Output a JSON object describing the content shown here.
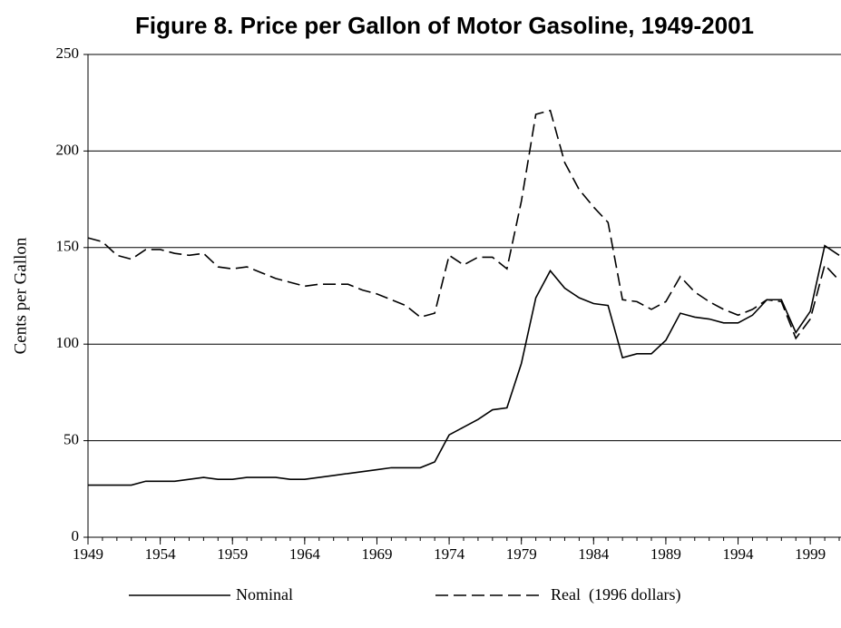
{
  "chart_data": {
    "type": "line",
    "title": "Figure 8.  Price per Gallon of Motor Gasoline, 1949-2001",
    "y_label": "Cents per Gallon",
    "x": [
      1949,
      1950,
      1951,
      1952,
      1953,
      1954,
      1955,
      1956,
      1957,
      1958,
      1959,
      1960,
      1961,
      1962,
      1963,
      1964,
      1965,
      1966,
      1967,
      1968,
      1969,
      1970,
      1971,
      1972,
      1973,
      1974,
      1975,
      1976,
      1977,
      1978,
      1979,
      1980,
      1981,
      1982,
      1983,
      1984,
      1985,
      1986,
      1987,
      1988,
      1989,
      1990,
      1991,
      1992,
      1993,
      1994,
      1995,
      1996,
      1997,
      1998,
      1999,
      2000,
      2001
    ],
    "series": [
      {
        "name": "Nominal",
        "color": "#000000",
        "dash": "solid",
        "values": [
          27,
          27,
          27,
          27,
          29,
          29,
          29,
          30,
          31,
          30,
          30,
          31,
          31,
          31,
          30,
          30,
          31,
          32,
          33,
          34,
          35,
          36,
          36,
          36,
          39,
          53,
          57,
          61,
          66,
          67,
          90,
          124,
          138,
          129,
          124,
          121,
          120,
          93,
          95,
          95,
          102,
          116,
          114,
          113,
          111,
          111,
          115,
          123,
          123,
          106,
          117,
          151,
          146
        ]
      },
      {
        "name": "Real  (1996 dollars)",
        "color": "#000000",
        "dash": "dashed",
        "values": [
          155,
          153,
          146,
          144,
          149,
          149,
          147,
          146,
          147,
          140,
          139,
          140,
          137,
          134,
          132,
          130,
          131,
          131,
          131,
          128,
          126,
          123,
          120,
          114,
          116,
          146,
          141,
          145,
          145,
          139,
          174,
          219,
          221,
          194,
          180,
          171,
          163,
          123,
          122,
          118,
          122,
          135,
          127,
          122,
          118,
          115,
          118,
          123,
          122,
          103,
          113,
          141,
          133
        ]
      }
    ],
    "xlim": [
      1949,
      2001
    ],
    "xticks": [
      1949,
      1954,
      1959,
      1964,
      1969,
      1974,
      1979,
      1984,
      1989,
      1994,
      1999
    ],
    "ylim": [
      0,
      250
    ],
    "yticks": [
      0,
      50,
      100,
      150,
      200,
      250
    ],
    "grid": true,
    "legend": "bottom"
  }
}
